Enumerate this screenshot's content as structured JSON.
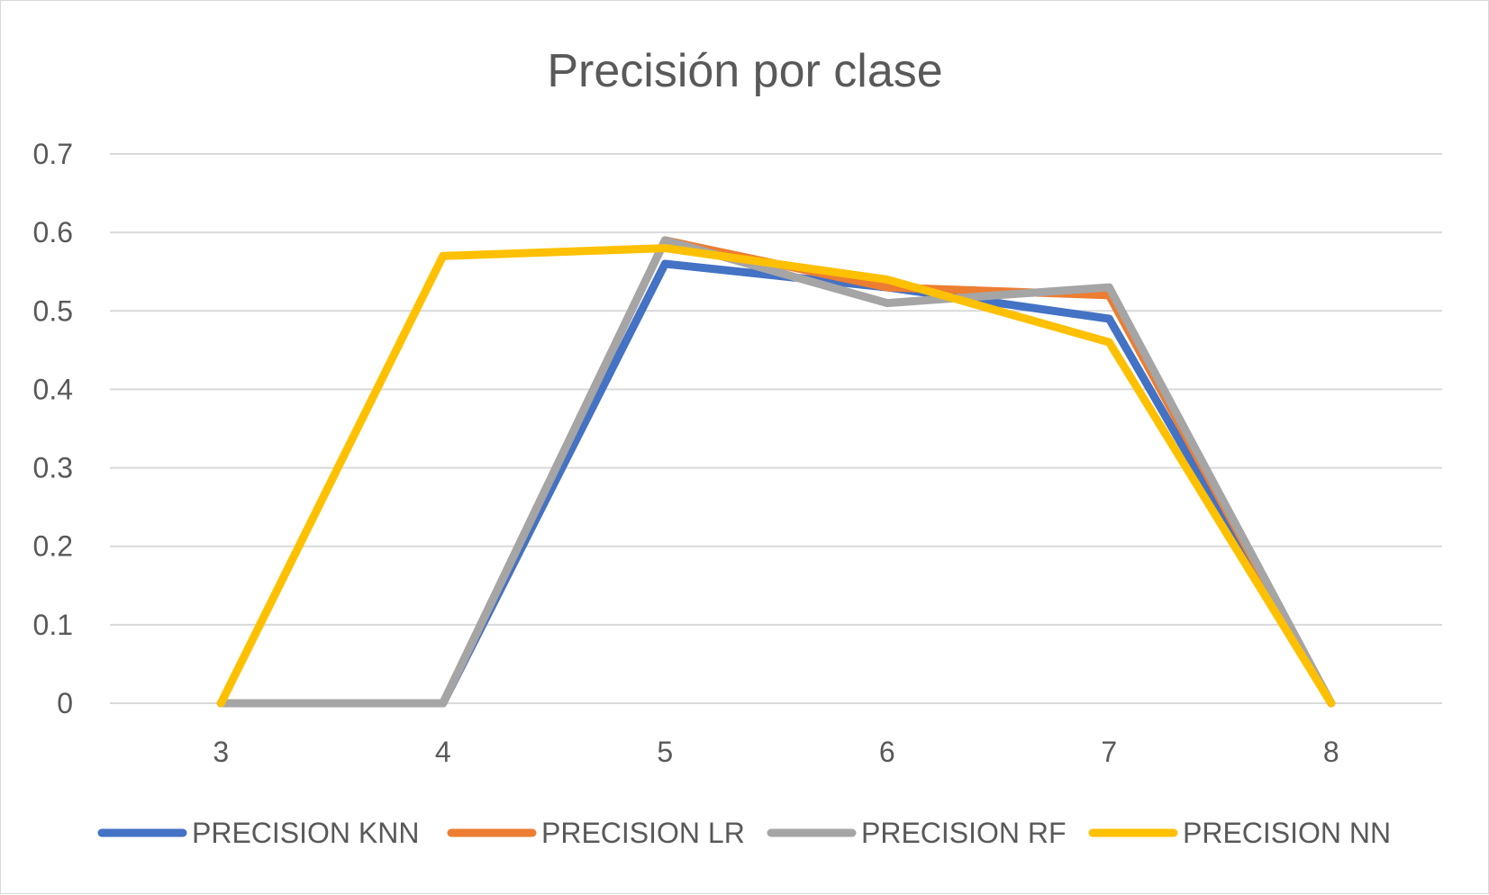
{
  "chart_data": {
    "type": "line",
    "title": "Precisión por clase",
    "xlabel": "",
    "ylabel": "",
    "categories": [
      "3",
      "4",
      "5",
      "6",
      "7",
      "8"
    ],
    "ylim": [
      0,
      0.7
    ],
    "yticks": [
      "0",
      "0.1",
      "0.2",
      "0.3",
      "0.4",
      "0.5",
      "0.6",
      "0.7"
    ],
    "grid": true,
    "legend_position": "bottom",
    "series": [
      {
        "name": "PRECISION KNN",
        "color": "#4472c4",
        "values": [
          0,
          0,
          0.56,
          0.53,
          0.49,
          0
        ]
      },
      {
        "name": "PRECISION LR",
        "color": "#ed7d31",
        "values": [
          0,
          0,
          0.59,
          0.53,
          0.52,
          0
        ]
      },
      {
        "name": "PRECISION RF",
        "color": "#a5a5a5",
        "values": [
          0,
          0,
          0.59,
          0.51,
          0.53,
          0
        ]
      },
      {
        "name": "PRECISION NN",
        "color": "#ffc000",
        "values": [
          0,
          0.57,
          0.58,
          0.54,
          0.46,
          0
        ]
      }
    ]
  }
}
